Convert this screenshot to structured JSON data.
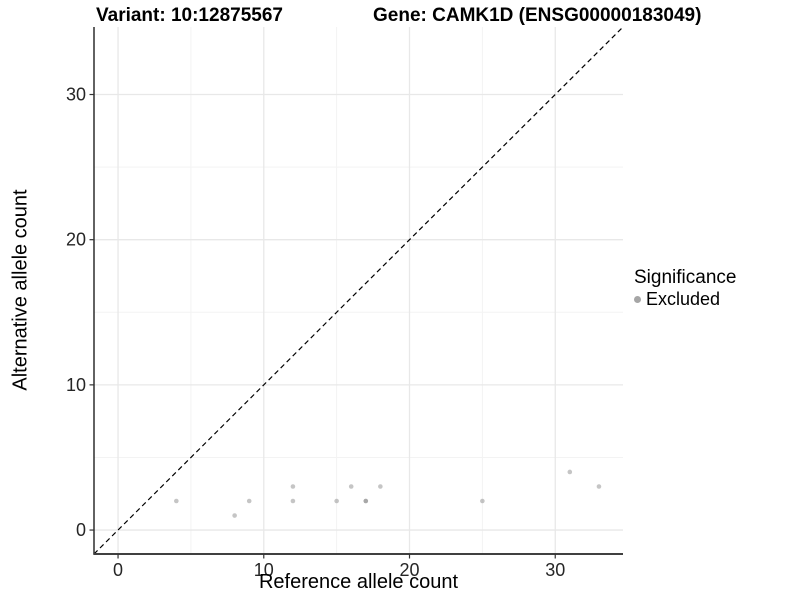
{
  "header": {
    "variant_title": "Variant: 10:12875567",
    "gene_title": "Gene: CAMK1D (ENSG00000183049)"
  },
  "chart_data": {
    "type": "scatter",
    "title_left": "Variant: 10:12875567",
    "title_right": "Gene: CAMK1D (ENSG00000183049)",
    "xlabel": "Reference allele count",
    "ylabel": "Alternative allele count",
    "xlim": [
      -1.65,
      34.65
    ],
    "ylim": [
      -1.65,
      34.65
    ],
    "x_major_ticks": [
      0,
      10,
      20,
      30
    ],
    "y_major_ticks": [
      0,
      10,
      20,
      30
    ],
    "x_minor_gridlines": [
      5,
      15,
      25
    ],
    "y_minor_gridlines": [
      5,
      15,
      25
    ],
    "grid": true,
    "legend_position": "right",
    "series": [
      {
        "name": "Excluded",
        "color": "#8c8c8c",
        "opacity": 0.5,
        "points": [
          [
            4,
            2
          ],
          [
            8,
            1
          ],
          [
            9,
            2
          ],
          [
            12,
            2
          ],
          [
            12,
            3
          ],
          [
            15,
            2
          ],
          [
            16,
            3
          ],
          [
            17,
            2
          ],
          [
            17,
            2
          ],
          [
            18,
            3
          ],
          [
            25,
            2
          ],
          [
            31,
            4
          ],
          [
            33,
            3
          ]
        ]
      }
    ],
    "abline": {
      "slope": 1,
      "intercept": 0,
      "style": "dashed",
      "color": "#000000"
    },
    "legend": {
      "title": "Significance",
      "entries": [
        {
          "label": "Excluded",
          "color": "#a6a6a6",
          "marker": "circle"
        }
      ]
    },
    "colors": {
      "background": "#ffffff",
      "gridline_major": "#e8e8e8",
      "gridline_minor": "#f3f3f3",
      "axis_line": "#1f1f1f",
      "bottom_axis_line": "#404040",
      "tick_mark": "#333333",
      "tick_text": "#262626"
    }
  }
}
